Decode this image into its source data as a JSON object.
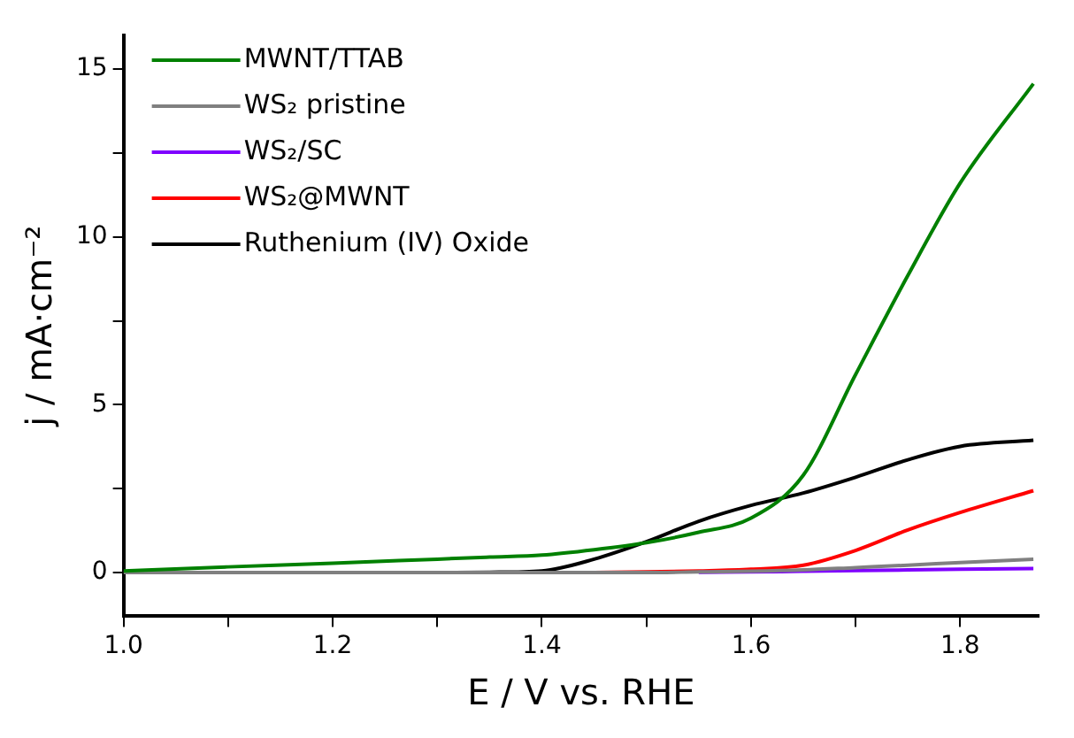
{
  "chart_data": {
    "type": "line",
    "xlabel": "E / V vs. RHE",
    "ylabel": "j / mA·cm⁻²",
    "x": [
      1.0,
      1.1,
      1.2,
      1.3,
      1.35,
      1.4,
      1.45,
      1.5,
      1.55,
      1.6,
      1.65,
      1.7,
      1.75,
      1.8,
      1.87
    ],
    "series": [
      {
        "name": "MWNT/TTAB",
        "color": "#008000",
        "values": [
          0.05,
          0.17,
          0.28,
          0.4,
          0.46,
          0.52,
          0.68,
          0.89,
          1.2,
          1.62,
          2.9,
          5.9,
          8.85,
          11.6,
          14.56
        ]
      },
      {
        "name": "WS₂ pristine",
        "color": "#808080",
        "values": [
          0,
          0,
          0,
          0,
          0,
          0,
          0,
          0,
          0.02,
          0.04,
          0.08,
          0.15,
          0.22,
          0.3,
          0.4
        ]
      },
      {
        "name": "WS₂/SC",
        "color": "#7f00ff",
        "values": [
          null,
          null,
          null,
          null,
          null,
          null,
          null,
          null,
          0.01,
          0.02,
          0.04,
          0.06,
          0.08,
          0.1,
          0.12
        ]
      },
      {
        "name": "WS₂@MWNT",
        "color": "#ff0000",
        "values": [
          null,
          null,
          null,
          null,
          null,
          null,
          0,
          0.02,
          0.05,
          0.1,
          0.22,
          0.66,
          1.27,
          1.79,
          2.44
        ]
      },
      {
        "name": "Ruthenium (IV) Oxide",
        "color": "#000000",
        "values": [
          0,
          0,
          0,
          0,
          0.01,
          0.05,
          0.4,
          0.92,
          1.53,
          2.0,
          2.37,
          2.84,
          3.36,
          3.76,
          3.94
        ]
      }
    ],
    "xlim": [
      1.0,
      1.875
    ],
    "xticks": [
      {
        "value": 1.0,
        "label": "1.0"
      },
      {
        "value": 1.1,
        "label": null
      },
      {
        "value": 1.2,
        "label": "1.2"
      },
      {
        "value": 1.3,
        "label": null
      },
      {
        "value": 1.4,
        "label": "1.4"
      },
      {
        "value": 1.5,
        "label": null
      },
      {
        "value": 1.6,
        "label": "1.6"
      },
      {
        "value": 1.7,
        "label": null
      },
      {
        "value": 1.8,
        "label": "1.8"
      }
    ],
    "ylim": [
      -1.3,
      16
    ],
    "yticks": [
      0,
      {
        "value": 2.5,
        "label": null
      },
      5,
      {
        "value": 7.5,
        "label": null
      },
      10,
      {
        "value": 12.5,
        "label": null
      },
      15
    ],
    "grid": false,
    "legend": "top left",
    "marker": "none",
    "line_style": "solid"
  }
}
